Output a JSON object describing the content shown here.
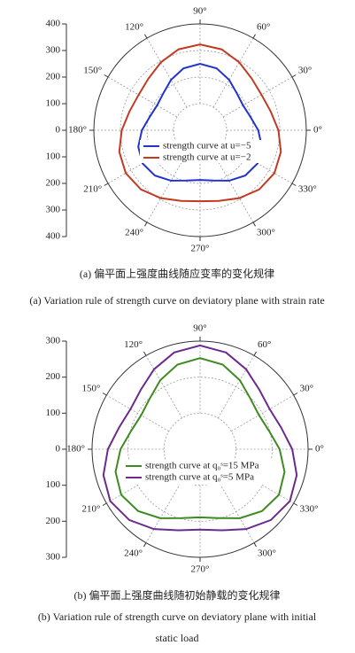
{
  "chart_data": [
    {
      "type": "polar",
      "theta": [
        0,
        15,
        30,
        45,
        60,
        75,
        90,
        105,
        120,
        135,
        150,
        165,
        180,
        195,
        210,
        225,
        240,
        255,
        270,
        285,
        300,
        315,
        330,
        345
      ],
      "series": [
        {
          "name": "strength curve at u=−5",
          "color": "#2233cc",
          "values": [
            219,
            196,
            187,
            196,
            219,
            241,
            250,
            241,
            219,
            196,
            187,
            196,
            219,
            241,
            250,
            241,
            219,
            196,
            187,
            196,
            219,
            241,
            250,
            241
          ]
        },
        {
          "name": "strength curve at u=−2",
          "color": "#c23a22",
          "values": [
            295,
            275,
            267,
            275,
            295,
            315,
            323,
            315,
            295,
            275,
            267,
            275,
            295,
            315,
            323,
            315,
            295,
            275,
            267,
            275,
            295,
            315,
            323,
            315
          ]
        }
      ],
      "rlim": [
        0,
        400
      ],
      "rgrid": [
        100,
        200,
        300
      ],
      "ylim": [
        -400,
        400
      ],
      "yticks": [
        400,
        300,
        200,
        100,
        0,
        {
          "value": -100,
          "label": "100"
        },
        {
          "value": -200,
          "label": "200"
        },
        {
          "value": -300,
          "label": "300"
        },
        {
          "value": -400,
          "label": "400"
        }
      ],
      "thetaticks": [
        {
          "value": 0,
          "label": "0°"
        },
        {
          "value": 30,
          "label": "30°"
        },
        {
          "value": 60,
          "label": "60°"
        },
        {
          "value": 90,
          "label": "90°"
        },
        {
          "value": 120,
          "label": "120°"
        },
        {
          "value": 150,
          "label": "150°"
        },
        {
          "value": 180,
          "label": "180°"
        },
        {
          "value": 210,
          "label": "210°"
        },
        {
          "value": 240,
          "label": "240°"
        },
        {
          "value": 270,
          "label": "270°"
        },
        {
          "value": 300,
          "label": "300°"
        },
        {
          "value": 330,
          "label": "330°"
        }
      ],
      "captions": [
        "(a) 偏平面上强度曲线随应变率的变化规律",
        "(a) Variation rule of strength curve on deviatory plane with strain rate"
      ]
    },
    {
      "type": "polar",
      "theta": [
        0,
        15,
        30,
        45,
        60,
        75,
        90,
        105,
        120,
        135,
        150,
        165,
        180,
        195,
        210,
        225,
        240,
        255,
        270,
        285,
        300,
        315,
        330,
        345
      ],
      "series": [
        {
          "name": "strength curve at q₀ˢ=15 MPa",
          "color": "#3f8a22",
          "values": [
            221,
            198,
            189,
            198,
            221,
            243,
            253,
            243,
            221,
            198,
            189,
            198,
            221,
            243,
            253,
            243,
            221,
            198,
            189,
            198,
            221,
            243,
            253,
            243
          ]
        },
        {
          "name": "strength curve at q₀ˢ=5 MPa",
          "color": "#6b2a8e",
          "values": [
            256,
            233,
            223,
            233,
            256,
            278,
            288,
            278,
            256,
            233,
            223,
            233,
            256,
            278,
            288,
            278,
            256,
            233,
            223,
            233,
            256,
            278,
            288,
            278
          ]
        }
      ],
      "rlim": [
        0,
        300
      ],
      "rgrid": [
        100,
        200
      ],
      "ylim": [
        -300,
        300
      ],
      "yticks": [
        300,
        200,
        100,
        0,
        {
          "value": -100,
          "label": "100"
        },
        {
          "value": -200,
          "label": "200"
        },
        {
          "value": -300,
          "label": "300"
        }
      ],
      "thetaticks": [
        {
          "value": 0,
          "label": "0°"
        },
        {
          "value": 30,
          "label": "30°"
        },
        {
          "value": 60,
          "label": "60°"
        },
        {
          "value": 90,
          "label": "90°"
        },
        {
          "value": 120,
          "label": "120°"
        },
        {
          "value": 150,
          "label": "150°"
        },
        {
          "value": 180,
          "label": "180°"
        },
        {
          "value": 210,
          "label": "210°"
        },
        {
          "value": 240,
          "label": "240°"
        },
        {
          "value": 270,
          "label": "270°"
        },
        {
          "value": 300,
          "label": "300°"
        },
        {
          "value": 330,
          "label": "330°"
        }
      ],
      "captions": [
        "(b) 偏平面上强度曲线随初始静载的变化规律",
        "(b) Variation rule of strength curve on deviatory plane with initial",
        "static load"
      ]
    }
  ]
}
